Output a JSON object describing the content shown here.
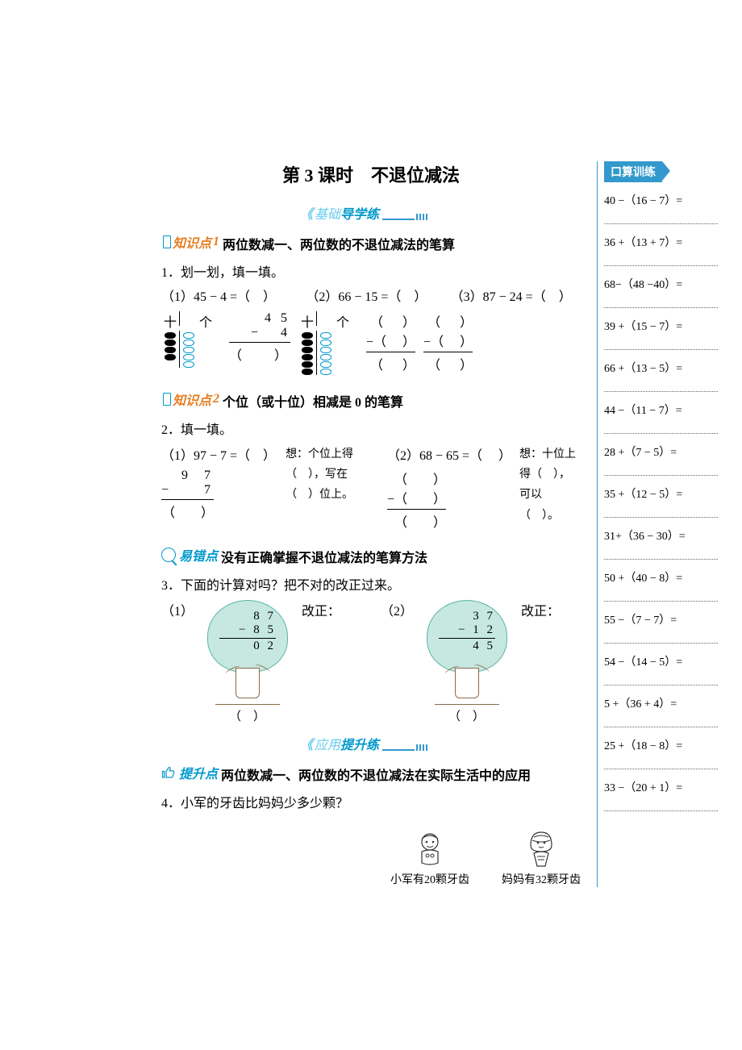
{
  "title": "第 3 课时　不退位减法",
  "banner1_light": "基础",
  "banner1_bold": "导学练",
  "banner2_light": "应用",
  "banner2_bold": "提升练",
  "kp1_prefix": "知识点",
  "kp1_num": "1",
  "kp1_title": "两位数减一、两位数的不退位减法的笔算",
  "q1": "1．划一划，填一填。",
  "q1_sub1": "（1）45 − 4 =（　）",
  "q1_sub2": "（2）66 − 15 =（　）",
  "q1_sub3": "（3）87 − 24 =（　）",
  "pt_ten": "十",
  "pt_one": "个",
  "v1_a": "4 5",
  "v1_b": "−   4",
  "blank": "（　  ）",
  "paren_blank_s": "（　）",
  "kp2_num": "2",
  "kp2_title": "个位（或十位）相减是 0 的笔算",
  "q2": "2．填一填。",
  "q2_sub1": "（1）97 − 7 =（　）",
  "q2_sub2": "（2）68 − 65 =（　 ）",
  "v2_a": "9  7",
  "v2_b": "−     7",
  "think1_l1": "想：个位上得",
  "think1_l2": "（　），写在",
  "think1_l3": "（　）位上。",
  "think2_l1": "想：十位上",
  "think2_l2": "得（　），",
  "think2_l3": "可以（　）。",
  "yc_prefix": "易错点",
  "yc_title": "没有正确掌握不退位减法的笔算方法",
  "q3": "3．下面的计算对吗？把不对的改正过来。",
  "q3_s1": "（1）",
  "q3_s2": "（2）",
  "fix": "改正：",
  "t1_a": "8  7",
  "t1_b": "−  8  5",
  "t1_c": "0  2",
  "t2_a": "3  7",
  "t2_b": "−  1  2",
  "t2_c": "4  5",
  "ts_prefix": "提升点",
  "ts_title": "两位数减一、两位数的不退位减法在实际生活中的应用",
  "q4": "4．小军的牙齿比妈妈少多少颗？",
  "q4_c1": "小军有20颗牙齿",
  "q4_c2": "妈妈有32颗牙齿",
  "side_title": "口算训练",
  "side_items": [
    "40 −（16 − 7）=",
    "36 +（13 + 7）=",
    "68−（48 −40）=",
    "39 +（15 − 7）=",
    "66 +（13 − 5）=",
    "44 −（11 − 7）=",
    "28 +（7 − 5）=",
    "35 +（12 − 5）=",
    "31+（36 − 30）=",
    "50 +（40 − 8）=",
    "55 −（7 − 7）=",
    "54 −（14 − 5）=",
    "5 +（36 + 4）=",
    "25 +（18 − 8）=",
    "33 −（20 + 1）="
  ]
}
